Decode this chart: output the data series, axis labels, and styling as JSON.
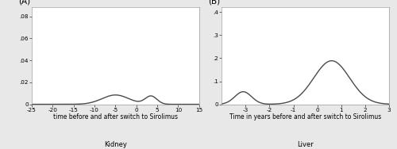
{
  "panel_A": {
    "label": "(A)",
    "xlabel": "time before and after switch to Sirolimus",
    "title": "Kidney",
    "xlim": [
      -25,
      15
    ],
    "ylim": [
      0,
      0.088
    ],
    "yticks": [
      0,
      0.02,
      0.04,
      0.06,
      0.08
    ],
    "ytick_labels": [
      "0",
      ".02",
      ".04",
      ".06",
      ".08"
    ],
    "xticks": [
      -25,
      -20,
      -15,
      -10,
      -5,
      0,
      5,
      10,
      15
    ],
    "xtick_labels": [
      "-25",
      "-20",
      "-15",
      "-10",
      "-5",
      "0",
      "5",
      "10",
      "15"
    ],
    "components": [
      {
        "mean": -5.0,
        "std": 3.2,
        "weight": 0.068
      },
      {
        "mean": 3.5,
        "std": 1.4,
        "weight": 0.026
      }
    ],
    "xmin": -25,
    "xmax": 15
  },
  "panel_B": {
    "label": "(B)",
    "xlabel": "Time in years before and after switch to Sirolimus",
    "title": "Liver",
    "xlim": [
      -4,
      3
    ],
    "ylim": [
      0,
      0.42
    ],
    "yticks": [
      0,
      0.1,
      0.2,
      0.3,
      0.4
    ],
    "ytick_labels": [
      "0",
      ".1",
      ".2",
      ".3",
      ".4"
    ],
    "xticks": [
      -3,
      -2,
      -1,
      0,
      1,
      2,
      3
    ],
    "xtick_labels": [
      "-3",
      "-2",
      "-1",
      "0",
      "1",
      "2",
      "3"
    ],
    "components": [
      {
        "mean": 0.6,
        "std": 0.75,
        "weight": 0.355
      },
      {
        "mean": -3.1,
        "std": 0.35,
        "weight": 0.048
      }
    ],
    "xmin": -4,
    "xmax": 3
  },
  "line_color": "#4a4a4a",
  "line_width": 1.0,
  "background_color": "#e8e8e8",
  "plot_background": "#ffffff",
  "grid_color": "#ffffff",
  "label_fontsize": 5.5,
  "title_fontsize": 6.0,
  "tick_fontsize": 5.2,
  "panel_label_fontsize": 7.5
}
